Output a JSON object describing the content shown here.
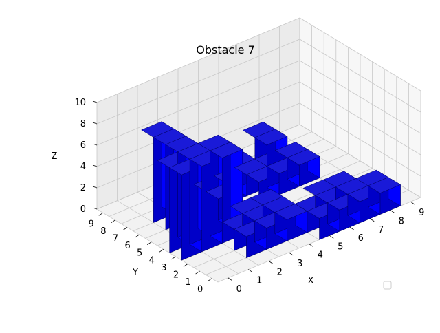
{
  "chart_data": {
    "type": "voxel-3d",
    "title": "Obstacle 7",
    "xlabel": "X",
    "ylabel": "Y",
    "zlabel": "Z",
    "x_ticks": [
      "0",
      "1",
      "2",
      "3",
      "4",
      "5",
      "6",
      "7",
      "8",
      "9"
    ],
    "y_ticks": [
      "0",
      "1",
      "2",
      "3",
      "4",
      "5",
      "6",
      "7",
      "8",
      "9"
    ],
    "z_ticks": [
      "0",
      "2",
      "4",
      "6",
      "8",
      "10"
    ],
    "xlim": [
      0,
      10
    ],
    "ylim": [
      0,
      10
    ],
    "zlim": [
      0,
      10
    ],
    "grid": true,
    "legend": "lower-right",
    "voxel_color": "#0000ff",
    "voxels": [
      [
        0,
        3,
        0,
        8
      ],
      [
        0,
        4,
        0,
        8
      ],
      [
        1,
        3,
        0,
        8
      ],
      [
        1,
        4,
        0,
        8
      ],
      [
        1,
        5,
        0,
        8
      ],
      [
        1,
        6,
        0,
        8
      ],
      [
        1,
        7,
        0,
        8
      ],
      [
        2,
        3,
        0,
        8
      ],
      [
        2,
        4,
        0,
        8
      ],
      [
        3,
        5,
        0,
        2
      ],
      [
        3,
        6,
        0,
        2
      ],
      [
        3,
        7,
        0,
        2
      ],
      [
        4,
        6,
        0,
        2
      ],
      [
        4,
        7,
        0,
        2
      ],
      [
        5,
        5,
        0,
        2
      ],
      [
        5,
        6,
        0,
        2
      ],
      [
        5,
        7,
        0,
        2
      ],
      [
        6,
        5,
        0,
        2
      ],
      [
        6,
        6,
        0,
        2
      ],
      [
        7,
        5,
        0,
        2
      ],
      [
        7,
        6,
        0,
        2
      ],
      [
        2,
        1,
        0,
        2
      ],
      [
        2,
        2,
        0,
        2
      ],
      [
        3,
        1,
        0,
        2
      ],
      [
        3,
        2,
        0,
        2
      ],
      [
        3,
        3,
        0,
        2
      ],
      [
        4,
        1,
        0,
        2
      ],
      [
        4,
        2,
        0,
        2
      ],
      [
        4,
        3,
        0,
        2
      ],
      [
        5,
        1,
        0,
        2
      ],
      [
        5,
        0,
        0,
        2
      ],
      [
        5,
        1,
        0,
        2
      ],
      [
        6,
        0,
        0,
        2
      ],
      [
        6,
        1,
        0,
        2
      ],
      [
        7,
        0,
        0,
        2
      ],
      [
        7,
        1,
        0,
        2
      ],
      [
        8,
        0,
        0,
        2
      ],
      [
        8,
        1,
        0,
        2
      ],
      [
        7,
        2,
        0,
        2
      ],
      [
        6,
        2,
        0,
        2
      ],
      [
        6,
        6,
        2,
        4
      ],
      [
        6,
        7,
        2,
        4
      ]
    ]
  }
}
